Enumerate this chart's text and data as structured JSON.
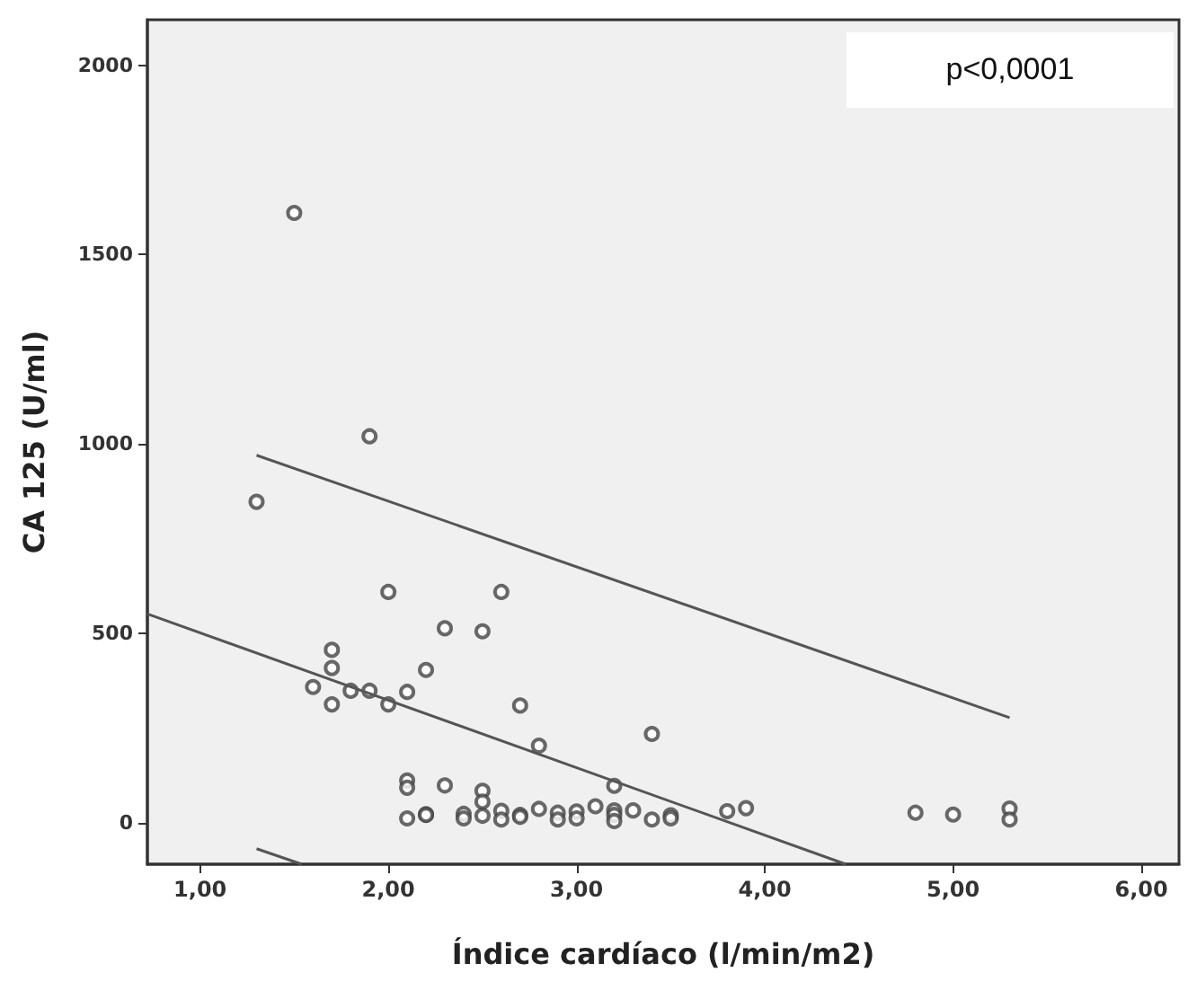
{
  "chart_data": {
    "type": "scatter",
    "xlabel": "Índice cardíaco (l/min/m2)",
    "ylabel": "CA 125 (U/ml)",
    "xlim": [
      0.72,
      6.2
    ],
    "ylim": [
      -110,
      2120
    ],
    "xticks": [
      {
        "value": 1,
        "label": "1,00"
      },
      {
        "value": 2,
        "label": "2,00"
      },
      {
        "value": 3,
        "label": "3,00"
      },
      {
        "value": 4,
        "label": "4,00"
      },
      {
        "value": 5,
        "label": "5,00"
      },
      {
        "value": 6,
        "label": "6,00"
      }
    ],
    "yticks": [
      0,
      500,
      1000,
      1500,
      2000
    ],
    "grid": false,
    "annotations": [
      "p<0,0001"
    ],
    "series": [
      {
        "color": "#444444",
        "marker": "circle",
        "x": [
          1.5,
          1.9,
          1.3,
          2.0,
          2.6,
          2.3,
          2.5,
          1.7,
          1.7,
          2.2,
          1.6,
          1.8,
          1.9,
          2.1,
          1.7,
          2.0,
          2.7,
          2.8,
          2.1,
          2.1,
          2.3,
          2.5,
          2.5,
          3.2,
          2.1,
          2.2,
          2.2,
          2.4,
          2.4,
          2.5,
          2.6,
          2.6,
          2.7,
          2.7,
          2.8,
          2.9,
          2.9,
          3.0,
          3.0,
          3.1,
          3.2,
          3.2,
          3.2,
          3.3,
          3.4,
          3.4,
          3.5,
          3.5,
          3.8,
          3.9,
          4.8,
          5.0,
          5.3,
          5.3
        ],
        "values": [
          1610,
          1020,
          847,
          609,
          609,
          513,
          505,
          456,
          408,
          403,
          358,
          348,
          348,
          345,
          312,
          312,
          309,
          203,
          111,
          92,
          98,
          84,
          55,
          97,
          11,
          22,
          20,
          23,
          11,
          18,
          31,
          8,
          20,
          15,
          36,
          26,
          8,
          29,
          11,
          43,
          32,
          20,
          4,
          32,
          234,
          8,
          19,
          11,
          30,
          38,
          26,
          21,
          37,
          8
        ]
      },
      {
        "type": "line",
        "color": "#555555",
        "marker": "none",
        "line_style": "solid",
        "x": [
          1.3,
          5.3
        ],
        "values": [
          970,
          277
        ]
      },
      {
        "type": "line",
        "color": "#555555",
        "marker": "none",
        "line_style": "solid",
        "x": [
          0.72,
          4.43
        ],
        "values": [
          551,
          -110
        ]
      },
      {
        "type": "line",
        "color": "#555555",
        "marker": "none",
        "line_style": "solid",
        "x": [
          1.3,
          1.54
        ],
        "values": [
          -69,
          -110
        ]
      }
    ]
  }
}
